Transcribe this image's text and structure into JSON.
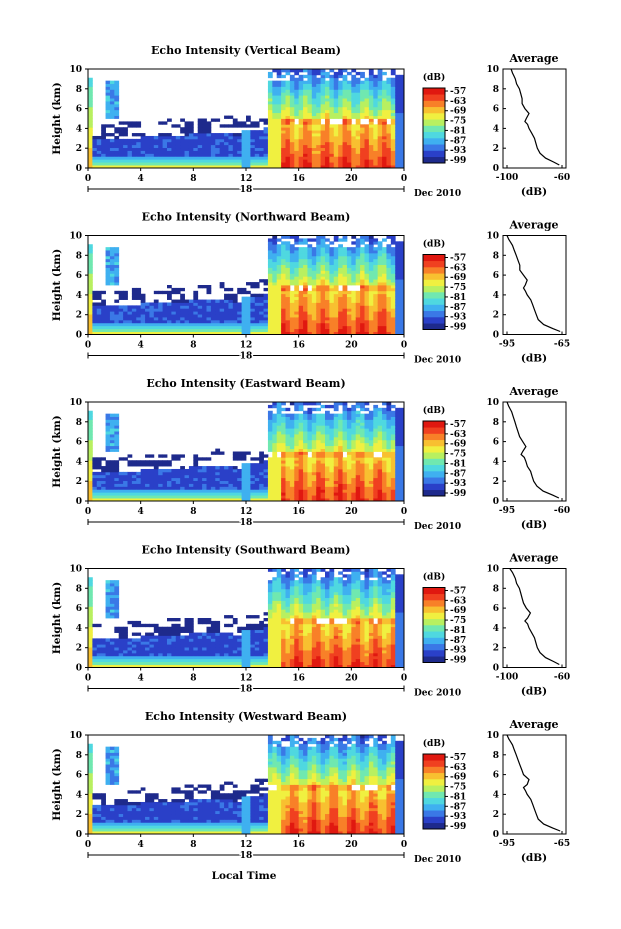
{
  "figure": {
    "date_label": "Dec 2010",
    "bottom_xlabel": "Local Time"
  },
  "chart_data": [
    {
      "type": "heatmap",
      "title": "Echo Intensity (Vertical Beam)",
      "ylabel": "Height (km)",
      "ylim": [
        0,
        10
      ],
      "xlim": [
        0,
        24
      ],
      "x_ticks": [
        "0",
        "4",
        "8",
        "12",
        "16",
        "20",
        "0"
      ],
      "y_ticks": [
        "0",
        "2",
        "4",
        "6",
        "8",
        "10"
      ],
      "day_label": "18",
      "date_label": "Dec 2010",
      "colorbar": {
        "label": "(dB)",
        "ticks": [
          "-57",
          "-63",
          "-69",
          "-75",
          "-81",
          "-87",
          "-93",
          "-99"
        ]
      },
      "profile": {
        "type": "line",
        "title": "Average",
        "xlabel": "(dB)",
        "x_ticks": [
          "-100",
          "-60"
        ],
        "xlim": [
          -100,
          -60
        ],
        "ylim": [
          0,
          10
        ],
        "y_ticks": [
          "0",
          "2",
          "4",
          "6",
          "8",
          "10"
        ],
        "x": [
          -62,
          -66,
          -72,
          -76,
          -78,
          -79,
          -80,
          -82,
          -84,
          -85,
          -87,
          -86,
          -84,
          -87,
          -89,
          -89,
          -90,
          -91,
          -93,
          -94,
          -95,
          -96,
          -97
        ],
        "y": [
          0.3,
          0.6,
          1.0,
          1.5,
          2.0,
          2.5,
          3.0,
          3.5,
          4.0,
          4.4,
          4.7,
          5.0,
          5.5,
          6.0,
          6.5,
          7.0,
          7.5,
          8.0,
          8.5,
          9.0,
          9.3,
          9.6,
          10.0
        ]
      }
    },
    {
      "type": "heatmap",
      "title": "Echo Intensity (Northward Beam)",
      "ylabel": "Height (km)",
      "ylim": [
        0,
        10
      ],
      "xlim": [
        0,
        24
      ],
      "x_ticks": [
        "0",
        "4",
        "8",
        "12",
        "16",
        "20",
        "0"
      ],
      "y_ticks": [
        "0",
        "2",
        "4",
        "6",
        "8",
        "10"
      ],
      "day_label": "18",
      "date_label": "Dec 2010",
      "colorbar": {
        "label": "(dB)",
        "ticks": [
          "-57",
          "-63",
          "-69",
          "-75",
          "-81",
          "-87",
          "-93",
          "-99"
        ]
      },
      "profile": {
        "type": "line",
        "title": "Average",
        "xlabel": "(dB)",
        "x_ticks": [
          "-95",
          "-65"
        ],
        "xlim": [
          -95,
          -65
        ],
        "ylim": [
          0,
          10
        ],
        "y_ticks": [
          "0",
          "2",
          "4",
          "6",
          "8",
          "10"
        ],
        "x": [
          -66,
          -70,
          -75,
          -78,
          -79,
          -80,
          -81,
          -82,
          -84,
          -85,
          -86,
          -85,
          -84,
          -86,
          -88,
          -88,
          -89,
          -90,
          -91,
          -92,
          -93,
          -94,
          -95
        ],
        "y": [
          0.3,
          0.6,
          1.0,
          1.5,
          2.0,
          2.5,
          3.0,
          3.5,
          4.0,
          4.4,
          4.7,
          5.0,
          5.5,
          6.0,
          6.5,
          7.0,
          7.5,
          8.0,
          8.5,
          9.0,
          9.3,
          9.6,
          10.0
        ]
      }
    },
    {
      "type": "heatmap",
      "title": "Echo Intensity (Eastward Beam)",
      "ylabel": "Height (km)",
      "ylim": [
        0,
        10
      ],
      "xlim": [
        0,
        24
      ],
      "x_ticks": [
        "0",
        "4",
        "8",
        "12",
        "16",
        "20",
        "0"
      ],
      "y_ticks": [
        "0",
        "2",
        "4",
        "6",
        "8",
        "10"
      ],
      "day_label": "18",
      "date_label": "Dec 2010",
      "colorbar": {
        "label": "(dB)",
        "ticks": [
          "-57",
          "-63",
          "-69",
          "-75",
          "-81",
          "-87",
          "-93",
          "-99"
        ]
      },
      "profile": {
        "type": "line",
        "title": "Average",
        "xlabel": "(dB)",
        "x_ticks": [
          "-95",
          "-60"
        ],
        "xlim": [
          -95,
          -60
        ],
        "ylim": [
          0,
          10
        ],
        "y_ticks": [
          "0",
          "2",
          "4",
          "6",
          "8",
          "10"
        ],
        "x": [
          -62,
          -66,
          -72,
          -76,
          -78,
          -79,
          -80,
          -82,
          -83,
          -84,
          -86,
          -85,
          -83,
          -85,
          -87,
          -88,
          -89,
          -90,
          -91,
          -92,
          -93,
          -94,
          -95
        ],
        "y": [
          0.3,
          0.6,
          1.0,
          1.5,
          2.0,
          2.5,
          3.0,
          3.5,
          4.0,
          4.4,
          4.7,
          5.0,
          5.5,
          6.0,
          6.5,
          7.0,
          7.5,
          8.0,
          8.5,
          9.0,
          9.3,
          9.6,
          10.0
        ]
      }
    },
    {
      "type": "heatmap",
      "title": "Echo Intensity (Southward Beam)",
      "ylabel": "Height (km)",
      "ylim": [
        0,
        10
      ],
      "xlim": [
        0,
        24
      ],
      "x_ticks": [
        "0",
        "4",
        "8",
        "12",
        "16",
        "20",
        "0"
      ],
      "y_ticks": [
        "0",
        "2",
        "4",
        "6",
        "8",
        "10"
      ],
      "day_label": "18",
      "date_label": "Dec 2010",
      "colorbar": {
        "label": "(dB)",
        "ticks": [
          "-57",
          "-63",
          "-69",
          "-75",
          "-81",
          "-87",
          "-93",
          "-99"
        ]
      },
      "profile": {
        "type": "line",
        "title": "Average",
        "xlabel": "(dB)",
        "x_ticks": [
          "-100",
          "-60"
        ],
        "xlim": [
          -100,
          -60
        ],
        "ylim": [
          0,
          10
        ],
        "y_ticks": [
          "0",
          "2",
          "4",
          "6",
          "8",
          "10"
        ],
        "x": [
          -62,
          -66,
          -72,
          -76,
          -78,
          -79,
          -80,
          -82,
          -84,
          -85,
          -87,
          -85,
          -83,
          -86,
          -88,
          -89,
          -90,
          -91,
          -93,
          -94,
          -95,
          -96,
          -98
        ],
        "y": [
          0.3,
          0.6,
          1.0,
          1.5,
          2.0,
          2.5,
          3.0,
          3.5,
          4.0,
          4.4,
          4.7,
          5.0,
          5.5,
          6.0,
          6.5,
          7.0,
          7.5,
          8.0,
          8.5,
          9.0,
          9.3,
          9.6,
          10.0
        ]
      }
    },
    {
      "type": "heatmap",
      "title": "Echo Intensity (Westward Beam)",
      "ylabel": "Height (km)",
      "ylim": [
        0,
        10
      ],
      "xlim": [
        0,
        24
      ],
      "x_ticks": [
        "0",
        "4",
        "8",
        "12",
        "16",
        "20",
        "0"
      ],
      "y_ticks": [
        "0",
        "2",
        "4",
        "6",
        "8",
        "10"
      ],
      "day_label": "18",
      "date_label": "Dec 2010",
      "colorbar": {
        "label": "(dB)",
        "ticks": [
          "-57",
          "-63",
          "-69",
          "-75",
          "-81",
          "-87",
          "-93",
          "-99"
        ]
      },
      "profile": {
        "type": "line",
        "title": "Average",
        "xlabel": "(dB)",
        "x_ticks": [
          "-95",
          "-65"
        ],
        "xlim": [
          -95,
          -65
        ],
        "ylim": [
          0,
          10
        ],
        "y_ticks": [
          "0",
          "2",
          "4",
          "6",
          "8",
          "10"
        ],
        "x": [
          -66,
          -70,
          -75,
          -78,
          -79,
          -80,
          -81,
          -82,
          -84,
          -85,
          -86,
          -84,
          -83,
          -86,
          -87,
          -88,
          -89,
          -90,
          -91,
          -92,
          -93,
          -94,
          -95
        ],
        "y": [
          0.3,
          0.6,
          1.0,
          1.5,
          2.0,
          2.5,
          3.0,
          3.5,
          4.0,
          4.4,
          4.7,
          5.0,
          5.5,
          6.0,
          6.5,
          7.0,
          7.5,
          8.0,
          8.5,
          9.0,
          9.3,
          9.6,
          10.0
        ]
      }
    }
  ],
  "colors": {
    "colormap": [
      "#1e2a8c",
      "#2a40c8",
      "#3a78e6",
      "#3fb0f0",
      "#4fd8e0",
      "#70e8b0",
      "#b8f060",
      "#f0f040",
      "#f8c030",
      "#f88028",
      "#f04020",
      "#e01810"
    ],
    "no_data": "#ffffff",
    "axis": "#000000"
  }
}
